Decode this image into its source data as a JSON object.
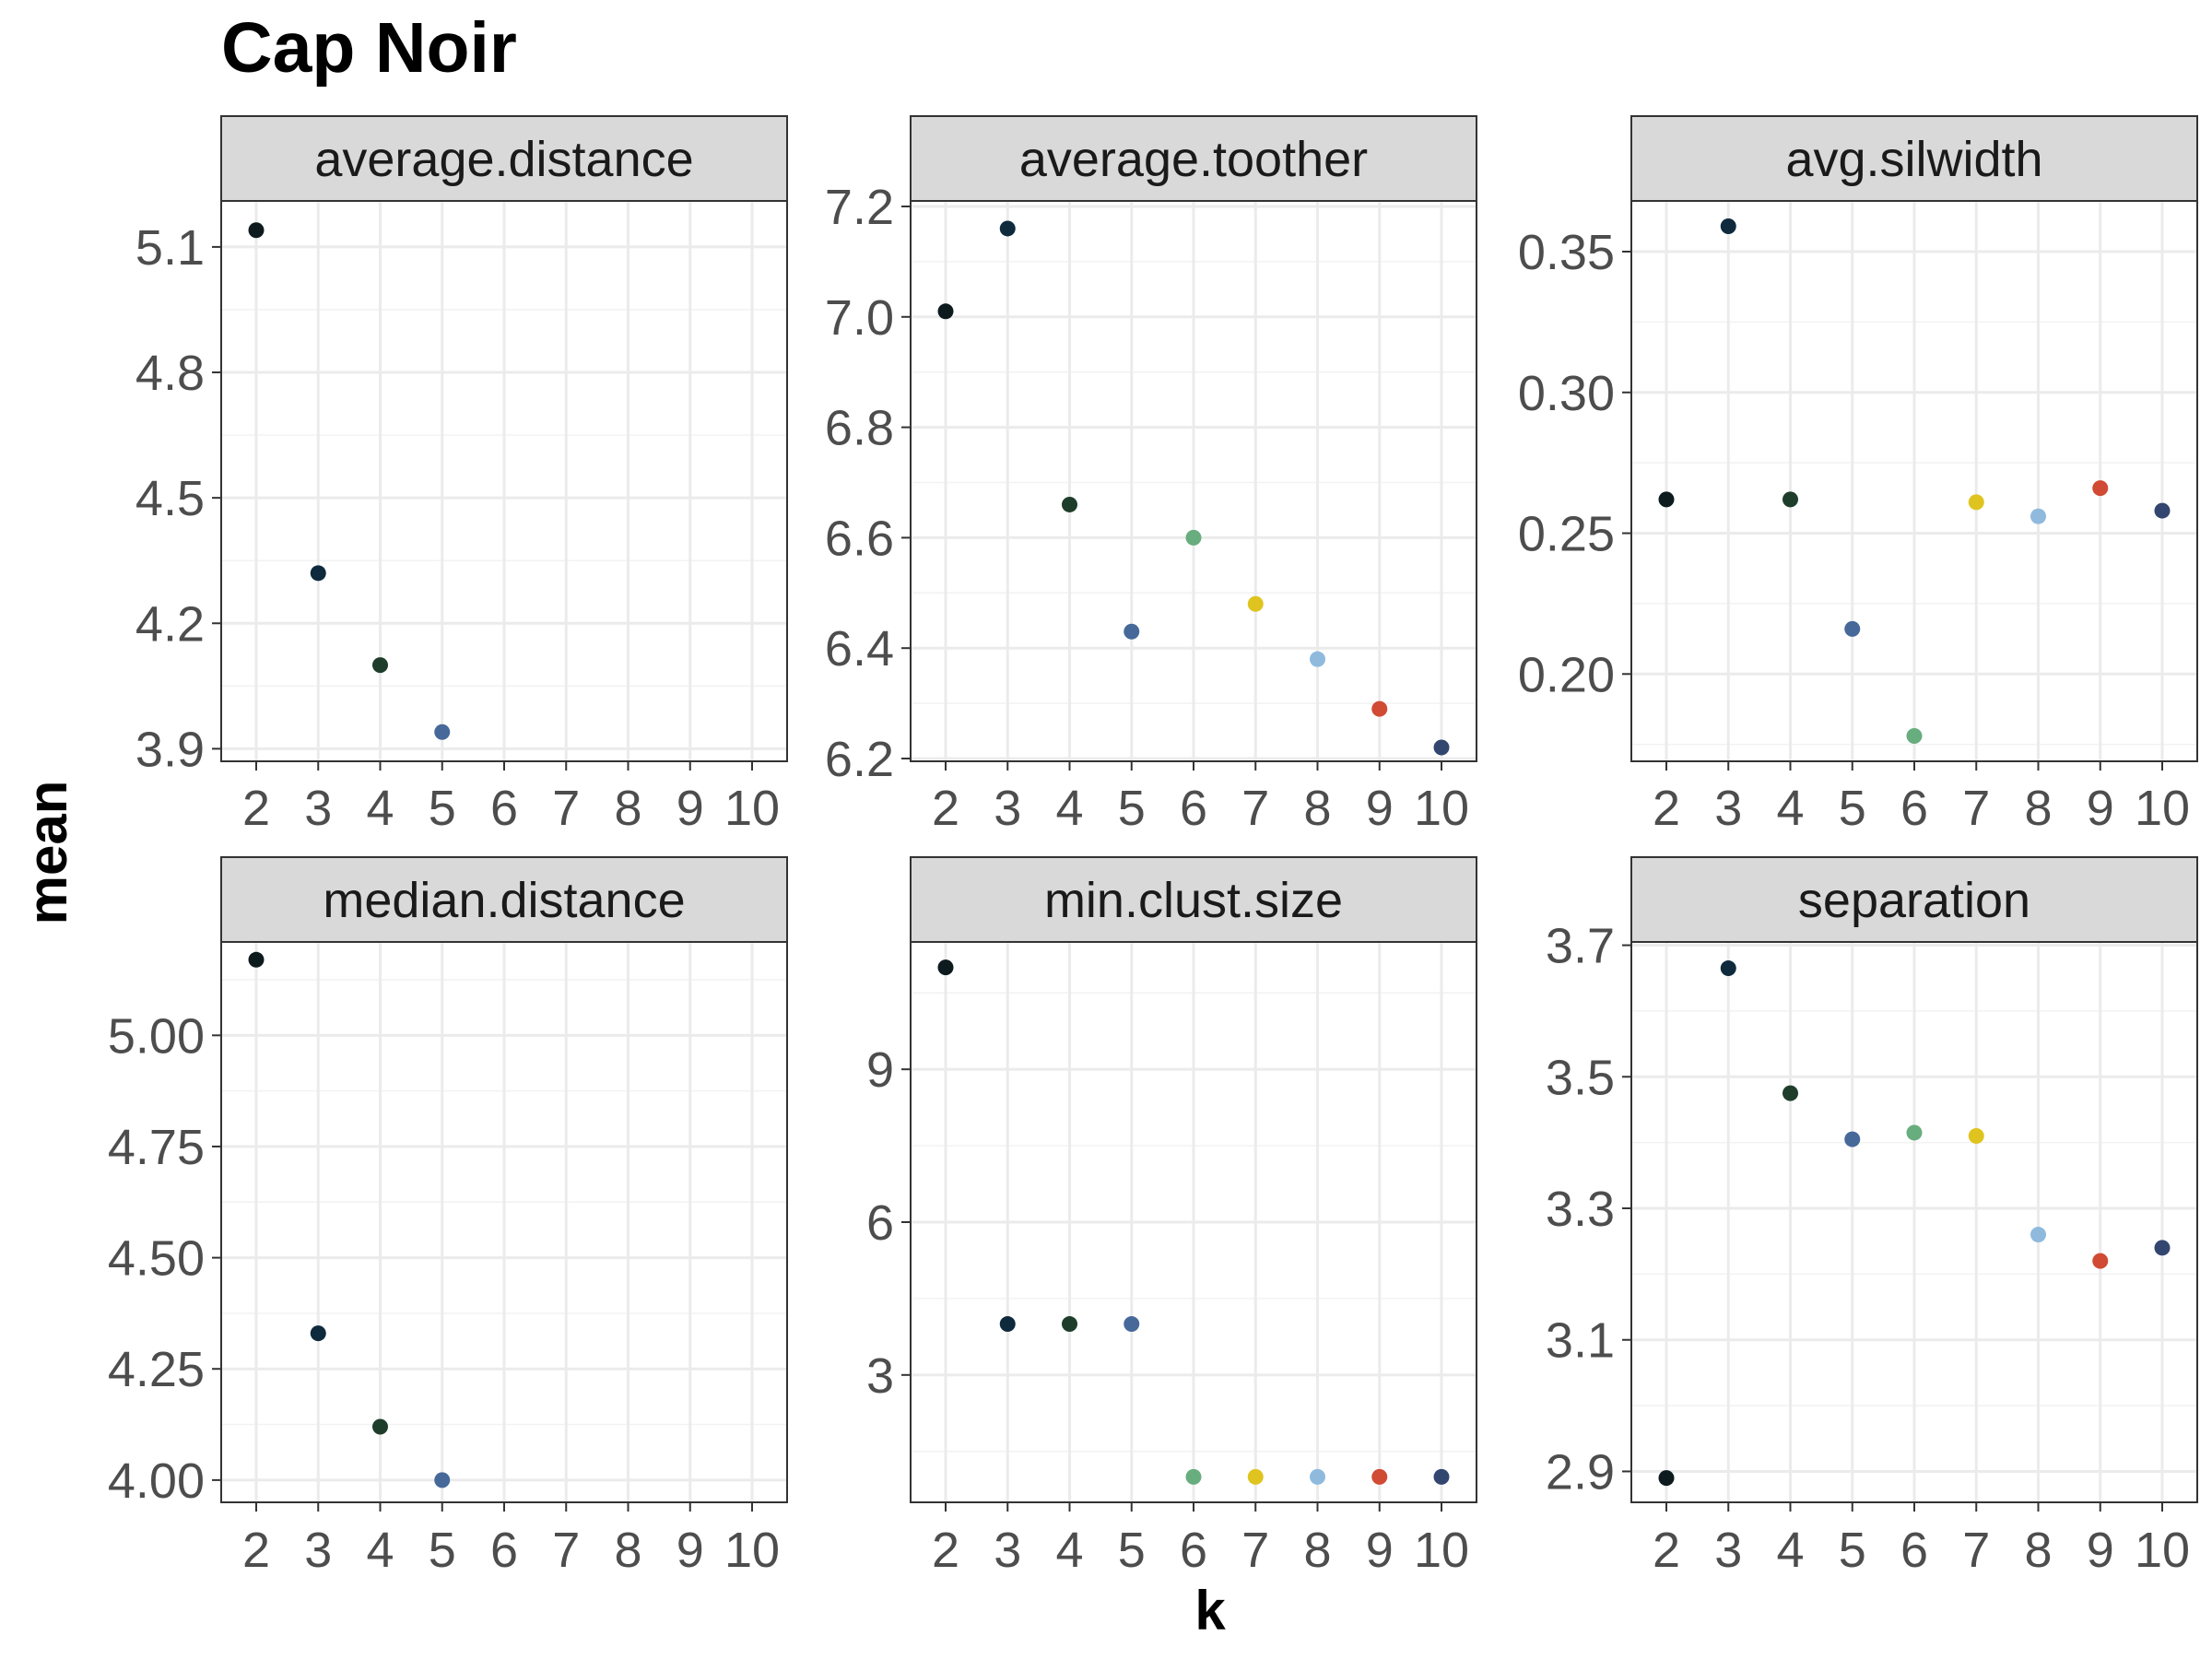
{
  "chart_data": {
    "type": "scatter",
    "title": "Cap Noir",
    "xlabel": "k",
    "ylabel": "mean",
    "x_categories": [
      "2",
      "3",
      "4",
      "5",
      "6",
      "7",
      "8",
      "9",
      "10"
    ],
    "point_colors": {
      "2": "#0d1b1e",
      "3": "#0f2a3d",
      "4": "#1f3d2b",
      "5": "#46699a",
      "6": "#68ad7e",
      "7": "#dfc420",
      "8": "#8fbadd",
      "9": "#d04a34",
      "10": "#33466f"
    },
    "grid": true,
    "panels": [
      {
        "name": "average.distance",
        "ylim": [
          3.87,
          5.21
        ],
        "yticks": [
          "3.9",
          "4.2",
          "4.5",
          "4.8",
          "5.1"
        ],
        "points": [
          {
            "k": 2,
            "y": 5.14
          },
          {
            "k": 3,
            "y": 4.32
          },
          {
            "k": 4,
            "y": 4.1
          },
          {
            "k": 5,
            "y": 3.94
          }
        ]
      },
      {
        "name": "average.toother",
        "ylim": [
          6.195,
          7.21
        ],
        "yticks": [
          "6.2",
          "6.4",
          "6.6",
          "6.8",
          "7.0",
          "7.2"
        ],
        "points": [
          {
            "k": 2,
            "y": 7.01
          },
          {
            "k": 3,
            "y": 7.16
          },
          {
            "k": 4,
            "y": 6.66
          },
          {
            "k": 5,
            "y": 6.43
          },
          {
            "k": 6,
            "y": 6.6
          },
          {
            "k": 7,
            "y": 6.48
          },
          {
            "k": 8,
            "y": 6.38
          },
          {
            "k": 9,
            "y": 6.29
          },
          {
            "k": 10,
            "y": 6.22
          }
        ]
      },
      {
        "name": "avg.silwidth",
        "ylim": [
          0.169,
          0.368
        ],
        "yticks": [
          "0.20",
          "0.25",
          "0.30",
          "0.35"
        ],
        "points": [
          {
            "k": 2,
            "y": 0.262
          },
          {
            "k": 3,
            "y": 0.359
          },
          {
            "k": 4,
            "y": 0.262
          },
          {
            "k": 5,
            "y": 0.216
          },
          {
            "k": 6,
            "y": 0.178
          },
          {
            "k": 7,
            "y": 0.261
          },
          {
            "k": 8,
            "y": 0.256
          },
          {
            "k": 9,
            "y": 0.266
          },
          {
            "k": 10,
            "y": 0.258
          }
        ]
      },
      {
        "name": "median.distance",
        "ylim": [
          3.95,
          5.21
        ],
        "yticks": [
          "4.00",
          "4.25",
          "4.50",
          "4.75",
          "5.00"
        ],
        "points": [
          {
            "k": 2,
            "y": 5.17
          },
          {
            "k": 3,
            "y": 4.33
          },
          {
            "k": 4,
            "y": 4.12
          },
          {
            "k": 5,
            "y": 4.0
          }
        ]
      },
      {
        "name": "min.clust.size",
        "ylim": [
          0.5,
          11.5
        ],
        "yticks": [
          "3",
          "6",
          "9"
        ],
        "points": [
          {
            "k": 2,
            "y": 11
          },
          {
            "k": 3,
            "y": 4
          },
          {
            "k": 4,
            "y": 4
          },
          {
            "k": 5,
            "y": 4
          },
          {
            "k": 6,
            "y": 1
          },
          {
            "k": 7,
            "y": 1
          },
          {
            "k": 8,
            "y": 1
          },
          {
            "k": 9,
            "y": 1
          },
          {
            "k": 10,
            "y": 1
          }
        ]
      },
      {
        "name": "separation",
        "ylim": [
          2.853,
          3.705
        ],
        "yticks": [
          "2.9",
          "3.1",
          "3.3",
          "3.5",
          "3.7"
        ],
        "points": [
          {
            "k": 2,
            "y": 2.89
          },
          {
            "k": 3,
            "y": 3.665
          },
          {
            "k": 4,
            "y": 3.475
          },
          {
            "k": 5,
            "y": 3.405
          },
          {
            "k": 6,
            "y": 3.415
          },
          {
            "k": 7,
            "y": 3.41
          },
          {
            "k": 8,
            "y": 3.26
          },
          {
            "k": 9,
            "y": 3.22
          },
          {
            "k": 10,
            "y": 3.24
          }
        ]
      }
    ]
  }
}
